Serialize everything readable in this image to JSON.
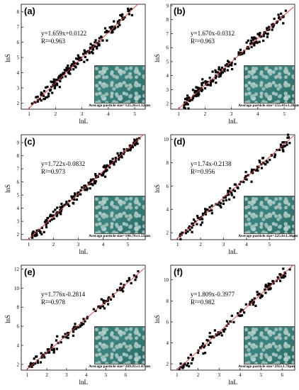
{
  "chart_data": [
    {
      "type": "scatter",
      "panel_label": "(a)",
      "equation": "y=1.659x+0.0122",
      "r2": "R²=0.963",
      "xlabel": "lnL",
      "ylabel": "lnS",
      "slope": 1.659,
      "intercept": 0.0122,
      "xlim": [
        0.7,
        5.4
      ],
      "ylim": [
        1.6,
        8.5
      ],
      "xticks": [
        1,
        2,
        3,
        4,
        5
      ],
      "yticks": [
        2,
        3,
        4,
        5,
        6,
        7,
        8
      ],
      "inset_caption": "Average particle size=125.26±1.32μm",
      "x_range": [
        1.1,
        4.9
      ],
      "n_points": 180,
      "noise": 0.22
    },
    {
      "type": "scatter",
      "panel_label": "(b)",
      "equation": "y=1.670x-0.0312",
      "r2": "R²=0.963",
      "xlabel": "lnL",
      "ylabel": "lnS",
      "slope": 1.67,
      "intercept": -0.0312,
      "xlim": [
        0.7,
        5.4
      ],
      "ylim": [
        1.6,
        9.1
      ],
      "xticks": [
        1,
        2,
        3,
        4,
        5
      ],
      "yticks": [
        2,
        3,
        4,
        5,
        6,
        7,
        8,
        9
      ],
      "inset_caption": "Average particle size=155.43±1.26μm",
      "x_range": [
        1.2,
        5.1
      ],
      "n_points": 180,
      "noise": 0.22
    },
    {
      "type": "scatter",
      "panel_label": "(c)",
      "equation": "y=1.722x-0.0832",
      "r2": "R²=0.973",
      "xlabel": "lnL",
      "ylabel": "lnS",
      "slope": 1.722,
      "intercept": -0.0832,
      "xlim": [
        0.7,
        5.7
      ],
      "ylim": [
        1.6,
        9.6
      ],
      "xticks": [
        1,
        2,
        3,
        4,
        5
      ],
      "yticks": [
        2,
        3,
        4,
        5,
        6,
        7,
        8,
        9
      ],
      "inset_caption": "Average particle size=186.76±1.55μm",
      "x_range": [
        1.1,
        5.5
      ],
      "n_points": 190,
      "noise": 0.2
    },
    {
      "type": "scatter",
      "panel_label": "(d)",
      "equation": "y=1.74x-0.2138",
      "r2": "R²=0.956",
      "xlabel": "lnL",
      "ylabel": "lnS",
      "slope": 1.74,
      "intercept": -0.2138,
      "xlim": [
        0.7,
        6.1
      ],
      "ylim": [
        1.4,
        10.4
      ],
      "xticks": [
        1,
        2,
        3,
        4,
        5
      ],
      "yticks": [
        2,
        4,
        6,
        8,
        10
      ],
      "inset_caption": "Average particle size=225.6±1.38μm",
      "x_range": [
        1.1,
        5.9
      ],
      "n_points": 130,
      "noise": 0.3
    },
    {
      "type": "scatter",
      "panel_label": "(e)",
      "equation": "y=1.776x-0.2814",
      "r2": "R²=0.978",
      "xlabel": "lnL",
      "ylabel": "lnS",
      "slope": 1.776,
      "intercept": -0.2814,
      "xlim": [
        0.7,
        7.0
      ],
      "ylim": [
        1.4,
        12.4
      ],
      "xticks": [
        1,
        2,
        3,
        4,
        5,
        6
      ],
      "yticks": [
        2,
        4,
        6,
        8,
        10,
        12
      ],
      "inset_caption": "Average particle size=269.81±1.47μm",
      "x_range": [
        1.1,
        6.7
      ],
      "n_points": 110,
      "noise": 0.28
    },
    {
      "type": "scatter",
      "panel_label": "(f)",
      "equation": "y=1.809x-0.3977",
      "r2": "R²=0.982",
      "xlabel": "lnL",
      "ylabel": "lnS",
      "slope": 1.809,
      "intercept": -0.3977,
      "xlim": [
        0.7,
        6.6
      ],
      "ylim": [
        1.4,
        11.4
      ],
      "xticks": [
        1,
        2,
        3,
        4,
        5,
        6
      ],
      "yticks": [
        2,
        4,
        6,
        8,
        10
      ],
      "inset_caption": "Average particle size=292±1.76μm",
      "x_range": [
        1.1,
        6.4
      ],
      "n_points": 120,
      "noise": 0.26
    }
  ]
}
